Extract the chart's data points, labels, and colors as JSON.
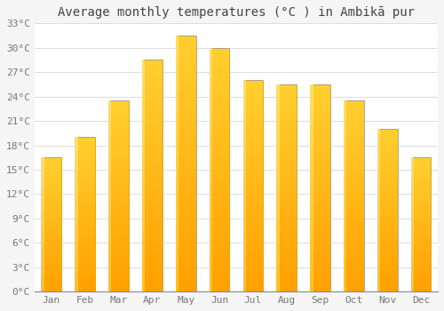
{
  "title": "Average monthly temperatures (°C ) in Ambikā pur",
  "months": [
    "Jan",
    "Feb",
    "Mar",
    "Apr",
    "May",
    "Jun",
    "Jul",
    "Aug",
    "Sep",
    "Oct",
    "Nov",
    "Dec"
  ],
  "values": [
    16.5,
    19.0,
    23.5,
    28.5,
    31.5,
    30.0,
    26.0,
    25.5,
    25.5,
    23.5,
    20.0,
    16.5
  ],
  "bar_color_top": "#FFB300",
  "bar_color_bottom": "#FF9900",
  "bar_color_light": "#FFD966",
  "bar_edge_color": "#B8860B",
  "background_color": "#F5F5F5",
  "plot_bg_color": "#FFFFFF",
  "grid_color": "#DDDDDD",
  "text_color": "#777777",
  "title_color": "#444444",
  "ylim": [
    0,
    33
  ],
  "yticks": [
    0,
    3,
    6,
    9,
    12,
    15,
    18,
    21,
    24,
    27,
    30,
    33
  ],
  "ytick_labels": [
    "0°C",
    "3°C",
    "6°C",
    "9°C",
    "12°C",
    "15°C",
    "18°C",
    "21°C",
    "24°C",
    "27°C",
    "30°C",
    "33°C"
  ],
  "title_fontsize": 10,
  "tick_fontsize": 8,
  "bar_width": 0.6
}
